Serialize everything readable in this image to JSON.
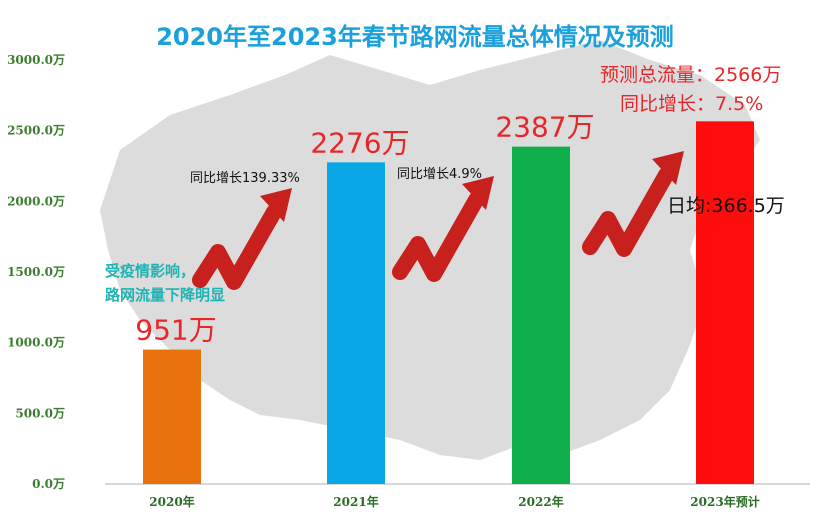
{
  "chart_data": {
    "type": "bar",
    "title": "2020年至2023年春节路网流量总体情况及预测",
    "categories": [
      "2020年",
      "2021年",
      "2022年",
      "2023年预计"
    ],
    "values": [
      951,
      2276,
      2387,
      2566
    ],
    "value_labels": [
      "951万",
      "2276万",
      "2387万",
      ""
    ],
    "colors": [
      "#e8720c",
      "#0aa7e6",
      "#0fb04c",
      "#ff0d0d"
    ],
    "ylim": [
      0,
      3000
    ],
    "yticks": [
      0,
      500,
      1000,
      1500,
      2000,
      2500,
      3000
    ],
    "ytick_labels": [
      "0.0万",
      "500.0万",
      "1000.0万",
      "1500.0万",
      "2000.0万",
      "2500.0万",
      "3000.0万"
    ],
    "xlabel": "",
    "ylabel": "",
    "grid": false,
    "annotations": {
      "covid_note_line1": "受疫情影响，",
      "covid_note_line2": "路网流量下降明显",
      "growth_2021": "同比增长139.33%",
      "growth_2022": "同比增长4.9%",
      "forecast_total": "预测总流量：2566万",
      "forecast_growth": "同比增长：7.5%",
      "daily_average": "日均:366.5万"
    }
  },
  "colors": {
    "title": "#1aa0dc",
    "accent_red": "#e8262a",
    "note_teal": "#21b3b3",
    "map_gray": "#d9d9d9"
  }
}
